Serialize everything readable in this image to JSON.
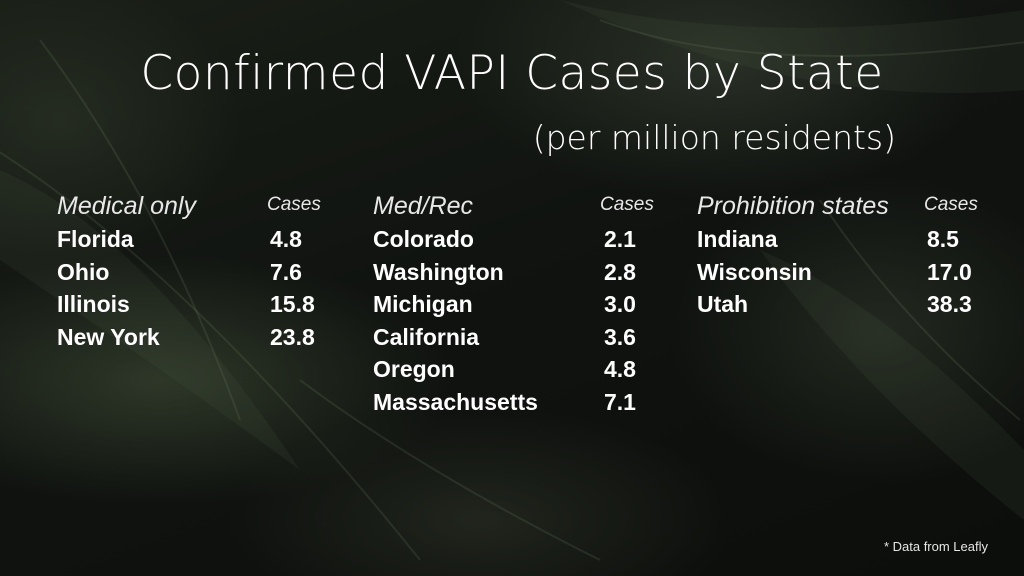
{
  "title": "Confirmed VAPI Cases by State",
  "subtitle": "(per million residents)",
  "footnote": "* Data from Leafly",
  "chart_data": {
    "type": "table",
    "title": "Confirmed VAPI Cases by State",
    "subtitle": "(per million residents)",
    "groups": [
      {
        "name": "Medical only",
        "value_label": "Cases",
        "rows": [
          {
            "state": "Florida",
            "cases": "4.8"
          },
          {
            "state": "Ohio",
            "cases": "7.6"
          },
          {
            "state": "Illinois",
            "cases": "15.8"
          },
          {
            "state": "New York",
            "cases": "23.8"
          }
        ]
      },
      {
        "name": "Med/Rec",
        "value_label": "Cases",
        "rows": [
          {
            "state": "Colorado",
            "cases": "2.1"
          },
          {
            "state": "Washington",
            "cases": "2.8"
          },
          {
            "state": "Michigan",
            "cases": "3.0"
          },
          {
            "state": "California",
            "cases": "3.6"
          },
          {
            "state": "Oregon",
            "cases": "4.8"
          },
          {
            "state": "Massachusetts",
            "cases": "7.1"
          }
        ]
      },
      {
        "name": "Prohibition states",
        "value_label": "Cases",
        "rows": [
          {
            "state": "Indiana",
            "cases": "8.5"
          },
          {
            "state": "Wisconsin",
            "cases": "17.0"
          },
          {
            "state": "Utah",
            "cases": "38.3"
          }
        ]
      }
    ]
  }
}
